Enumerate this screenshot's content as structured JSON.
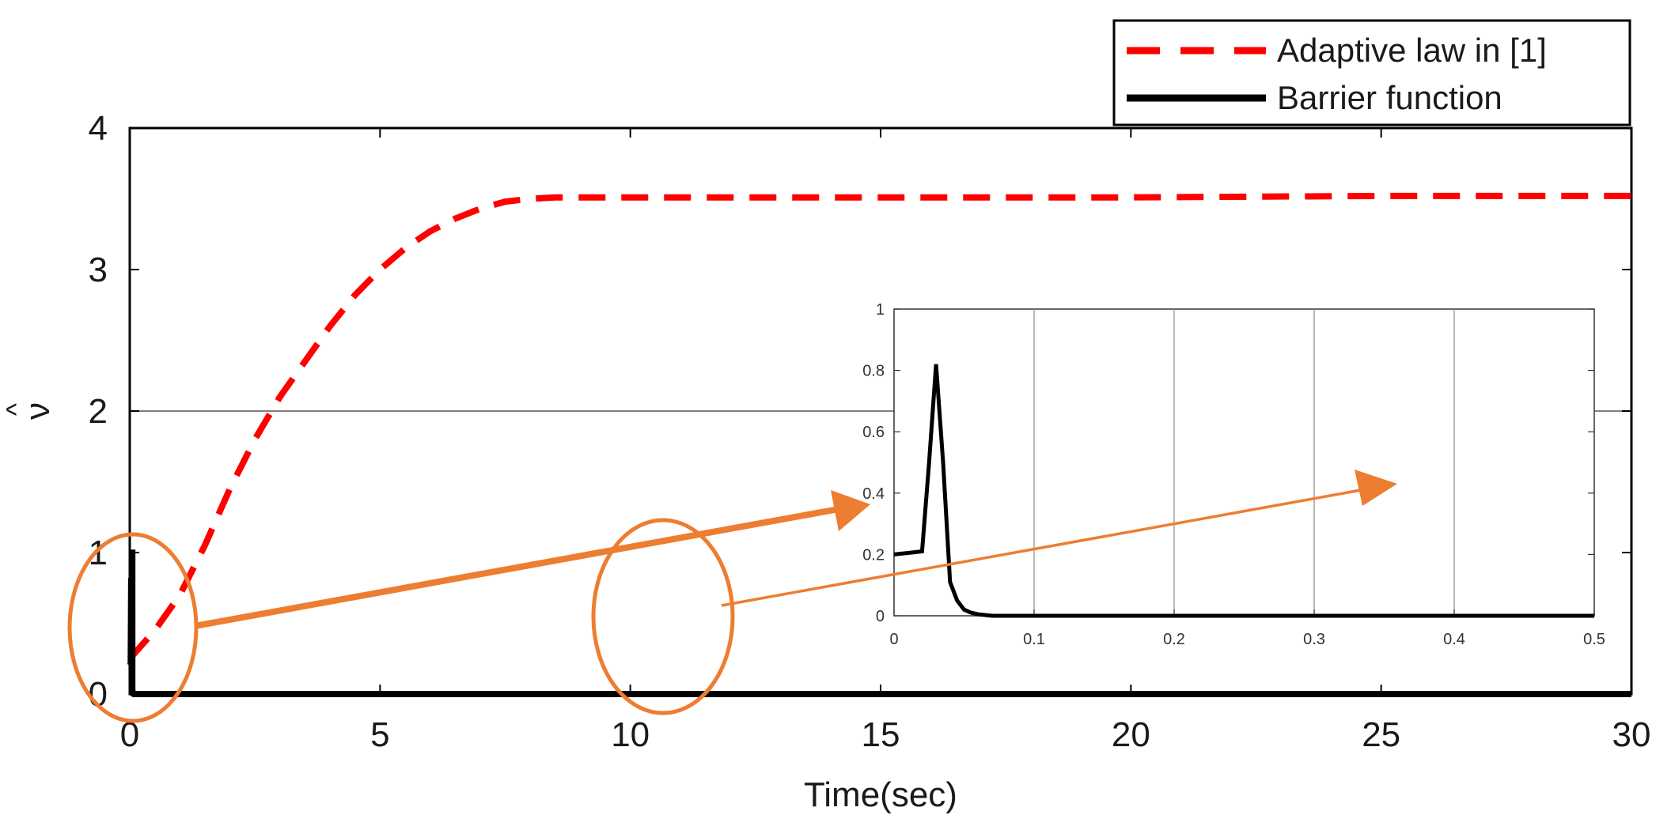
{
  "chart_data": [
    {
      "type": "line",
      "title": "",
      "xlabel": "Time(sec)",
      "ylabel": "ν",
      "ylabel_accent": "^",
      "xlim": [
        0,
        30
      ],
      "ylim": [
        0,
        4
      ],
      "xticks": [
        0,
        5,
        10,
        15,
        20,
        25,
        30
      ],
      "yticks": [
        0,
        1,
        2,
        3,
        4
      ],
      "grid": false,
      "legend_position": "top-right",
      "series": [
        {
          "name": "Adaptive law in [1]",
          "color": "#ff0000",
          "style": "dashed",
          "x": [
            0,
            0.5,
            1,
            1.5,
            2,
            2.5,
            3,
            3.5,
            4,
            4.5,
            5,
            5.5,
            6,
            6.5,
            7,
            7.5,
            8,
            8.5,
            9,
            10,
            12,
            15,
            20,
            25,
            30
          ],
          "y": [
            0.25,
            0.45,
            0.7,
            1.05,
            1.45,
            1.8,
            2.1,
            2.35,
            2.6,
            2.82,
            3.0,
            3.15,
            3.27,
            3.36,
            3.43,
            3.48,
            3.5,
            3.51,
            3.51,
            3.51,
            3.51,
            3.51,
            3.51,
            3.52,
            3.52
          ]
        },
        {
          "name": "Barrier function",
          "color": "#000000",
          "style": "solid",
          "x": [
            0,
            0.02,
            0.03,
            0.04,
            0.05,
            0.06,
            0.08,
            0.1,
            0.5,
            30
          ],
          "y": [
            0.2,
            0.21,
            0.82,
            0.1,
            0.02,
            0.005,
            0,
            0,
            0,
            0
          ]
        }
      ]
    },
    {
      "type": "line",
      "title": "",
      "xlim": [
        0,
        0.5
      ],
      "ylim": [
        0,
        1
      ],
      "xticks": [
        0,
        0.1,
        0.2,
        0.3,
        0.4,
        0.5
      ],
      "xtick_labels": [
        "0",
        "0.1",
        "0.2",
        "0.3",
        "0.4",
        "0.5"
      ],
      "yticks": [
        0,
        0.2,
        0.4,
        0.6,
        0.8,
        1
      ],
      "ytick_labels": [
        "0",
        "0.2",
        "0.4",
        "0.6",
        "0.8",
        "1"
      ],
      "series": [
        {
          "name": "Barrier function",
          "color": "#000000",
          "style": "solid",
          "x": [
            0,
            0.01,
            0.02,
            0.025,
            0.03,
            0.035,
            0.04,
            0.045,
            0.05,
            0.055,
            0.06,
            0.07,
            0.1,
            0.2,
            0.3,
            0.4,
            0.5
          ],
          "y": [
            0.2,
            0.205,
            0.21,
            0.5,
            0.82,
            0.5,
            0.11,
            0.05,
            0.02,
            0.01,
            0.005,
            0,
            0,
            0,
            0,
            0,
            0
          ]
        }
      ]
    }
  ],
  "annotations": {
    "color": "#ed7d31",
    "circles": [
      "zoom-region-near-origin",
      "zoom-region-mid-axis"
    ],
    "arrows": [
      "arrow-to-inset-left",
      "arrow-to-inset-right"
    ]
  }
}
